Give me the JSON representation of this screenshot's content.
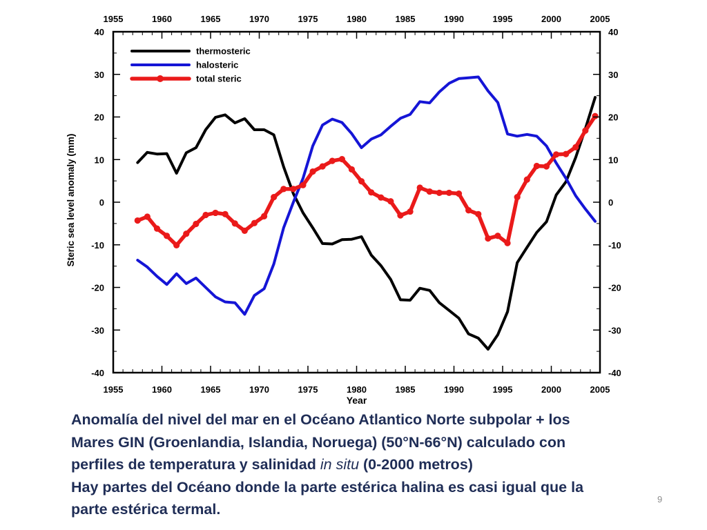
{
  "chart_data": {
    "type": "line",
    "xlabel": "Year",
    "ylabel": "Steric sea level anomaly (mm)",
    "xlim": [
      1955,
      2005
    ],
    "ylim": [
      -40,
      40
    ],
    "x_ticks": [
      "1955",
      "1960",
      "1965",
      "1970",
      "1975",
      "1980",
      "1985",
      "1990",
      "1995",
      "2000",
      "2005"
    ],
    "y_ticks": [
      "-40",
      "-30",
      "-20",
      "-10",
      "0",
      "10",
      "20",
      "30",
      "40"
    ],
    "legend_position": "top-left",
    "x": [
      1957.5,
      1958.5,
      1959.5,
      1960.5,
      1961.5,
      1962.5,
      1963.5,
      1964.5,
      1965.5,
      1966.5,
      1967.5,
      1968.5,
      1969.5,
      1970.5,
      1971.5,
      1972.5,
      1973.5,
      1974.5,
      1975.5,
      1976.5,
      1977.5,
      1978.5,
      1979.5,
      1980.5,
      1981.5,
      1982.5,
      1983.5,
      1984.5,
      1985.5,
      1986.5,
      1987.5,
      1988.5,
      1989.5,
      1990.5,
      1991.5,
      1992.5,
      1993.5,
      1994.5,
      1995.5,
      1996.5,
      1997.5,
      1998.5,
      1999.5,
      2000.5,
      2001.5,
      2002.5,
      2003.5,
      2004.5
    ],
    "series": [
      {
        "name": "thermosteric",
        "color": "#000000",
        "markers": false,
        "values": [
          9.3,
          11.7,
          11.3,
          11.4,
          6.8,
          11.6,
          12.8,
          17.0,
          19.9,
          20.5,
          18.6,
          19.6,
          17.0,
          17.0,
          15.8,
          8.3,
          2.0,
          -2.5,
          -6.0,
          -9.7,
          -9.8,
          -8.8,
          -8.7,
          -8.1,
          -12.4,
          -14.9,
          -18.1,
          -22.9,
          -23.0,
          -20.2,
          -20.7,
          -23.6,
          -25.4,
          -27.2,
          -30.9,
          -31.9,
          -34.5,
          -31.1,
          -25.7,
          -14.2,
          -10.6,
          -7.1,
          -4.6,
          1.7,
          4.8,
          10.5,
          17.3,
          24.6
        ]
      },
      {
        "name": "halosteric",
        "color": "#1515d6",
        "markers": false,
        "values": [
          -13.6,
          -15.2,
          -17.4,
          -19.3,
          -16.8,
          -19.1,
          -17.8,
          -20.0,
          -22.2,
          -23.4,
          -23.6,
          -26.3,
          -21.9,
          -20.3,
          -14.5,
          -6.0,
          0.0,
          5.6,
          13.2,
          18.1,
          19.5,
          18.7,
          16.1,
          12.8,
          14.8,
          15.8,
          17.8,
          19.7,
          20.6,
          23.6,
          23.3,
          25.9,
          27.9,
          29.0,
          29.2,
          29.4,
          26.1,
          23.4,
          16.0,
          15.5,
          15.9,
          15.5,
          13.2,
          9.2,
          5.6,
          1.5,
          -1.6,
          -4.5
        ]
      },
      {
        "name": "total steric",
        "color": "#ea1a1a",
        "markers": true,
        "values": [
          -4.3,
          -3.4,
          -6.2,
          -7.9,
          -10.1,
          -7.4,
          -5.1,
          -3.0,
          -2.5,
          -2.8,
          -5.0,
          -6.7,
          -4.9,
          -3.3,
          1.2,
          3.1,
          3.1,
          4.0,
          7.2,
          8.4,
          9.7,
          10.1,
          7.7,
          4.9,
          2.3,
          1.1,
          0.2,
          -3.1,
          -2.2,
          3.4,
          2.5,
          2.2,
          2.2,
          2.0,
          -1.9,
          -2.8,
          -8.5,
          -7.9,
          -9.6,
          1.2,
          5.3,
          8.5,
          8.4,
          11.2,
          11.3,
          12.9,
          16.8,
          20.2
        ]
      }
    ]
  },
  "caption": {
    "line1": "Anomalía del nivel del mar en el Océano Atlantico Norte subpolar + los",
    "line2": "Mares GIN (Groenlandia, Islandia, Noruega)  (50°N-66°N)  calculado con",
    "line3_pre": "perfiles de temperatura y salinidad ",
    "line3_italic": "in situ",
    "line3_post": "  (0-2000 metros)",
    "line4": "Hay partes del Océano donde la parte estérica halina es casi igual que la",
    "line5": "parte estérica termal."
  },
  "slide_number": "9"
}
